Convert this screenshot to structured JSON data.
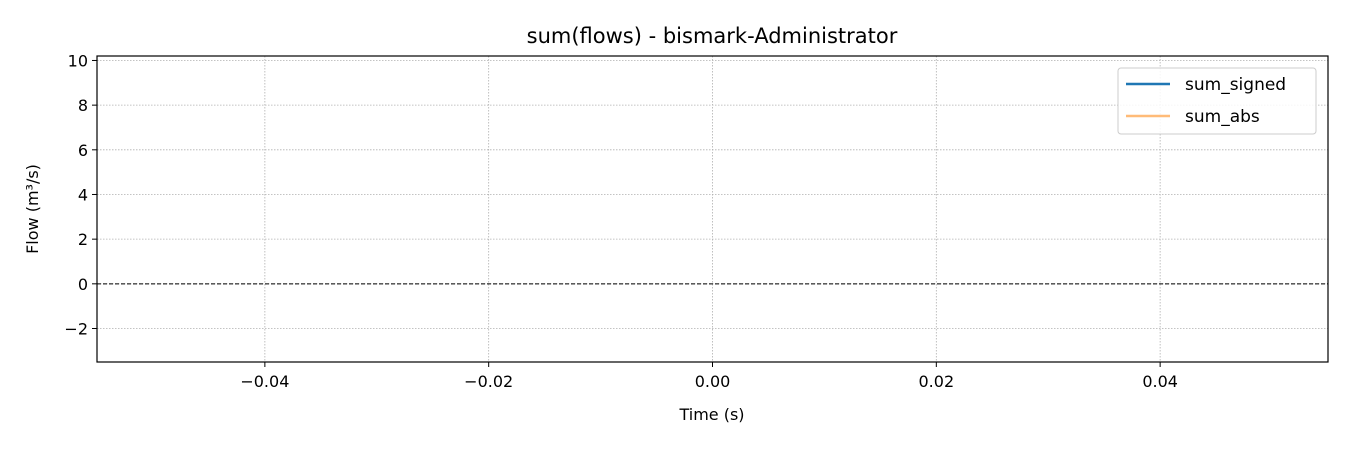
{
  "chart_data": {
    "type": "line",
    "title": "sum(flows) - bismark-Administrator",
    "xlabel": "Time (s)",
    "ylabel": "Flow (m³/s)",
    "xlim": [
      -0.055,
      0.055
    ],
    "ylim": [
      -3.5,
      10.2
    ],
    "x_ticks": [
      -0.04,
      -0.02,
      0.0,
      0.02,
      0.04
    ],
    "x_tick_labels": [
      "−0.04",
      "−0.02",
      "0.00",
      "0.02",
      "0.04"
    ],
    "y_ticks": [
      -2,
      0,
      2,
      4,
      6,
      8,
      10
    ],
    "y_tick_labels": [
      "−2",
      "0",
      "2",
      "4",
      "6",
      "8",
      "10"
    ],
    "grid": true,
    "reference_line": {
      "y": 0,
      "style": "dashed"
    },
    "legend_position": "top-right",
    "series": [
      {
        "name": "sum_signed",
        "color": "#1f77b4",
        "x": [],
        "values": []
      },
      {
        "name": "sum_abs",
        "color": "#ffbb78",
        "x": [],
        "values": []
      }
    ]
  }
}
